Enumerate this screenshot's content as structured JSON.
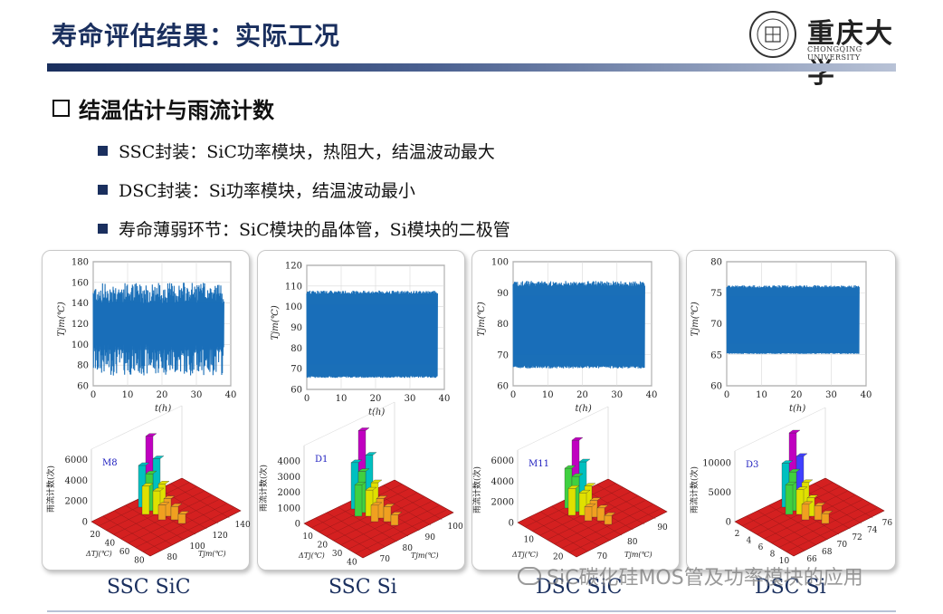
{
  "title": "寿命评估结果：实际工况",
  "logo": {
    "cn": "重庆大学",
    "en": "CHONGQING UNIVERSITY"
  },
  "section": "结温估计与雨流计数",
  "bullets": [
    "SSC封装：SiC功率模块，热阻大，结温波动最大",
    "DSC封装：Si功率模块，结温波动最小",
    "寿命薄弱环节：SiC模块的晶体管，Si模块的二极管"
  ],
  "captions": [
    "SSC SiC",
    "SSC Si",
    "DSC SiC",
    "DSC Si"
  ],
  "watermark": "SiC碳化硅MOS管及功率模块的应用",
  "colors": {
    "title": "#1a2f5e",
    "trace": "#1a6fb8",
    "accent": "#1a2f5e"
  },
  "chart_data": [
    {
      "type": "line",
      "title": "",
      "xlabel": "t(h)",
      "ylabel": "Tjm(℃)",
      "xlim": [
        0,
        40
      ],
      "ylim": [
        60,
        180
      ],
      "xticks": [
        0,
        10,
        20,
        30,
        40
      ],
      "yticks": [
        60,
        80,
        100,
        120,
        140,
        160,
        180
      ],
      "series": [
        {
          "x": [
            0,
            38
          ],
          "low": 85,
          "high": 150,
          "min": 70,
          "max": 160
        }
      ]
    },
    {
      "type": "line",
      "title": "",
      "xlabel": "t(h)",
      "ylabel": "Tjm(℃)",
      "xlim": [
        0,
        40
      ],
      "ylim": [
        60,
        120
      ],
      "xticks": [
        0,
        10,
        20,
        30,
        40
      ],
      "yticks": [
        60,
        70,
        80,
        90,
        100,
        110,
        120
      ],
      "series": [
        {
          "x": [
            0,
            38
          ],
          "low": 66,
          "high": 107,
          "min": 65,
          "max": 109
        }
      ]
    },
    {
      "type": "line",
      "title": "",
      "xlabel": "t(h)",
      "ylabel": "Tjm(℃)",
      "xlim": [
        0,
        40
      ],
      "ylim": [
        60,
        100
      ],
      "xticks": [
        0,
        10,
        20,
        30,
        40
      ],
      "yticks": [
        60,
        70,
        80,
        90,
        100
      ],
      "series": [
        {
          "x": [
            0,
            38
          ],
          "low": 66,
          "high": 93,
          "min": 65,
          "max": 95
        }
      ]
    },
    {
      "type": "line",
      "title": "",
      "xlabel": "t(h)",
      "ylabel": "Tjm(℃)",
      "xlim": [
        0,
        40
      ],
      "ylim": [
        60,
        80
      ],
      "xticks": [
        0,
        10,
        20,
        30,
        40
      ],
      "yticks": [
        60,
        65,
        70,
        75,
        80
      ],
      "series": [
        {
          "x": [
            0,
            38
          ],
          "low": 65.2,
          "high": 76,
          "min": 65,
          "max": 76.5
        }
      ]
    },
    {
      "type": "heatmap",
      "title": "",
      "zlabel": "雨流计数(次)",
      "annotation": "M8",
      "zticks": [
        0,
        2000,
        4000,
        6000
      ],
      "zlim": [
        0,
        7000
      ],
      "xlabel": "ΔTj(℃)",
      "xticks": [
        20,
        40,
        60,
        80
      ],
      "ylabel": "Tjm(℃)",
      "yticks": [
        80,
        100,
        120,
        140
      ],
      "peak": {
        "dT": 40,
        "Tjm": 120,
        "count": 6500
      }
    },
    {
      "type": "heatmap",
      "title": "",
      "zlabel": "雨流计数(次)",
      "annotation": "D1",
      "zticks": [
        0,
        1000,
        2000,
        3000,
        4000
      ],
      "zlim": [
        0,
        5000
      ],
      "xlabel": "ΔTj(℃)",
      "xticks": [
        10,
        20,
        30,
        40
      ],
      "ylabel": "Tjm(℃)",
      "yticks": [
        70,
        80,
        90,
        100
      ],
      "peak": {
        "dT": 20,
        "Tjm": 85,
        "count": 4800
      }
    },
    {
      "type": "heatmap",
      "title": "",
      "zlabel": "雨流计数(次)",
      "annotation": "M11",
      "zticks": [
        0,
        2000,
        4000,
        6000
      ],
      "zlim": [
        0,
        7000
      ],
      "xlabel": "ΔTj(℃)",
      "xticks": [
        10,
        20
      ],
      "ylabel": "Tjm(℃)",
      "yticks": [
        70,
        80,
        90
      ],
      "peak": {
        "dT": 15,
        "Tjm": 80,
        "count": 6200
      }
    },
    {
      "type": "heatmap",
      "title": "",
      "zlabel": "雨流计数(次)",
      "annotation": "D3",
      "zticks": [
        0,
        5000,
        10000
      ],
      "zlim": [
        0,
        12000
      ],
      "xlabel": "",
      "xticks": [
        2,
        4,
        6,
        8,
        10
      ],
      "ylabel": "",
      "yticks": [
        66,
        68,
        70,
        72,
        74,
        76
      ],
      "peak": {
        "dT": 6,
        "Tjm": 72,
        "count": 12000
      }
    }
  ]
}
